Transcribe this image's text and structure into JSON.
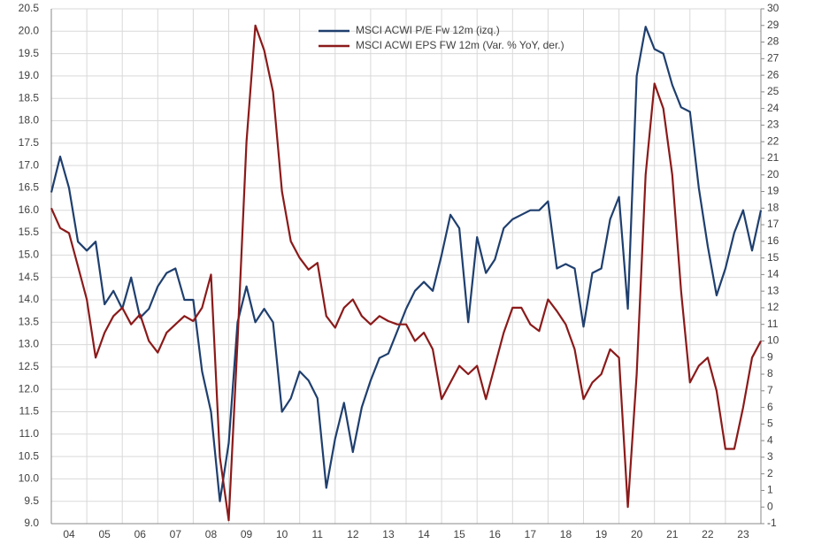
{
  "chart_data": {
    "type": "line",
    "x": [
      2004,
      2004.25,
      2004.5,
      2004.75,
      2005,
      2005.25,
      2005.5,
      2005.75,
      2006,
      2006.25,
      2006.5,
      2006.75,
      2007,
      2007.25,
      2007.5,
      2007.75,
      2008,
      2008.25,
      2008.5,
      2008.75,
      2009,
      2009.25,
      2009.5,
      2009.75,
      2010,
      2010.25,
      2010.5,
      2010.75,
      2011,
      2011.25,
      2011.5,
      2011.75,
      2012,
      2012.25,
      2012.5,
      2012.75,
      2013,
      2013.25,
      2013.5,
      2013.75,
      2014,
      2014.25,
      2014.5,
      2014.75,
      2015,
      2015.25,
      2015.5,
      2015.75,
      2016,
      2016.25,
      2016.5,
      2016.75,
      2017,
      2017.25,
      2017.5,
      2017.75,
      2018,
      2018.25,
      2018.5,
      2018.75,
      2019,
      2019.25,
      2019.5,
      2019.75,
      2020,
      2020.25,
      2020.5,
      2020.75,
      2021,
      2021.25,
      2021.5,
      2021.75,
      2022,
      2022.25,
      2022.5,
      2022.75,
      2023,
      2023.25,
      2023.5,
      2023.75,
      2024
    ],
    "series": [
      {
        "name": "MSCI ACWI P/E Fw 12m (izq.)",
        "color": "#1f3f6e",
        "axis": "y",
        "values": [
          16.4,
          17.2,
          16.5,
          15.3,
          15.1,
          15.3,
          13.9,
          14.2,
          13.8,
          14.5,
          13.6,
          13.8,
          14.3,
          14.6,
          14.7,
          14.0,
          14.0,
          12.4,
          11.5,
          9.5,
          10.8,
          13.5,
          14.3,
          13.5,
          13.8,
          13.5,
          11.5,
          11.8,
          12.4,
          12.2,
          11.8,
          9.8,
          10.9,
          11.7,
          10.6,
          11.6,
          12.2,
          12.7,
          12.8,
          13.3,
          13.8,
          14.2,
          14.4,
          14.2,
          15.0,
          15.9,
          15.6,
          13.5,
          15.4,
          14.6,
          14.9,
          15.6,
          15.8,
          15.9,
          16.0,
          16.0,
          16.2,
          14.7,
          14.8,
          14.7,
          13.4,
          14.6,
          14.7,
          15.8,
          16.3,
          13.8,
          19.0,
          20.1,
          19.6,
          19.5,
          18.8,
          18.3,
          18.2,
          16.5,
          15.2,
          14.1,
          14.7,
          15.5,
          16.0,
          15.1,
          16.0
        ]
      },
      {
        "name": "MSCI ACWI EPS FW 12m (Var. % YoY, der.)",
        "color": "#8b1a1a",
        "axis": "y2",
        "values": [
          18.0,
          16.8,
          16.5,
          14.5,
          12.5,
          9.0,
          10.5,
          11.5,
          12.0,
          11.0,
          11.6,
          10.0,
          9.3,
          10.5,
          11.0,
          11.5,
          11.2,
          12.0,
          14.0,
          3.0,
          -0.8,
          10.0,
          22.0,
          29.0,
          27.5,
          25.0,
          19.0,
          16.0,
          15.0,
          14.3,
          14.7,
          11.5,
          10.8,
          12.0,
          12.5,
          11.5,
          11.0,
          11.5,
          11.2,
          11.0,
          11.0,
          10.0,
          10.5,
          9.5,
          6.5,
          7.5,
          8.5,
          8.0,
          8.5,
          6.5,
          8.5,
          10.5,
          12.0,
          12.0,
          11.0,
          10.6,
          12.5,
          11.8,
          11.0,
          9.5,
          6.5,
          7.5,
          8.0,
          9.5,
          9.0,
          0.0,
          8.0,
          20.0,
          25.5,
          24.0,
          20.0,
          13.0,
          7.5,
          8.5,
          9.0,
          7.0,
          3.5,
          3.5,
          6.0,
          9.0,
          10.0
        ]
      }
    ],
    "xlim": [
      2004,
      2024
    ],
    "xticks": [
      {
        "value": 2004,
        "label": "04"
      },
      {
        "value": 2005,
        "label": "05"
      },
      {
        "value": 2006,
        "label": "06"
      },
      {
        "value": 2007,
        "label": "07"
      },
      {
        "value": 2008,
        "label": "08"
      },
      {
        "value": 2009,
        "label": "09"
      },
      {
        "value": 2010,
        "label": "10"
      },
      {
        "value": 2011,
        "label": "11"
      },
      {
        "value": 2012,
        "label": "12"
      },
      {
        "value": 2013,
        "label": "13"
      },
      {
        "value": 2014,
        "label": "14"
      },
      {
        "value": 2015,
        "label": "15"
      },
      {
        "value": 2016,
        "label": "16"
      },
      {
        "value": 2017,
        "label": "17"
      },
      {
        "value": 2018,
        "label": "18"
      },
      {
        "value": 2019,
        "label": "19"
      },
      {
        "value": 2020,
        "label": "20"
      },
      {
        "value": 2021,
        "label": "21"
      },
      {
        "value": 2022,
        "label": "22"
      },
      {
        "value": 2023,
        "label": "23"
      }
    ],
    "ylim": [
      9,
      20.5
    ],
    "yticks": [
      {
        "value": 9,
        "label": "9.0"
      },
      9.5,
      {
        "value": 10,
        "label": "10.0"
      },
      10.5,
      {
        "value": 11,
        "label": "11.0"
      },
      11.5,
      {
        "value": 12,
        "label": "12.0"
      },
      12.5,
      {
        "value": 13,
        "label": "13.0"
      },
      13.5,
      {
        "value": 14,
        "label": "14.0"
      },
      14.5,
      {
        "value": 15,
        "label": "15.0"
      },
      15.5,
      {
        "value": 16,
        "label": "16.0"
      },
      16.5,
      {
        "value": 17,
        "label": "17.0"
      },
      17.5,
      {
        "value": 18,
        "label": "18.0"
      },
      18.5,
      {
        "value": 19,
        "label": "19.0"
      },
      19.5,
      {
        "value": 20,
        "label": "20.0"
      },
      20.5
    ],
    "y2lim": [
      -1,
      30
    ],
    "y2ticks": [
      -1,
      0,
      1,
      2,
      3,
      4,
      5,
      6,
      7,
      8,
      9,
      10,
      11,
      12,
      13,
      14,
      15,
      16,
      17,
      18,
      19,
      20,
      21,
      22,
      23,
      24,
      25,
      26,
      27,
      28,
      29,
      30
    ],
    "grid": true,
    "legend": "top"
  }
}
